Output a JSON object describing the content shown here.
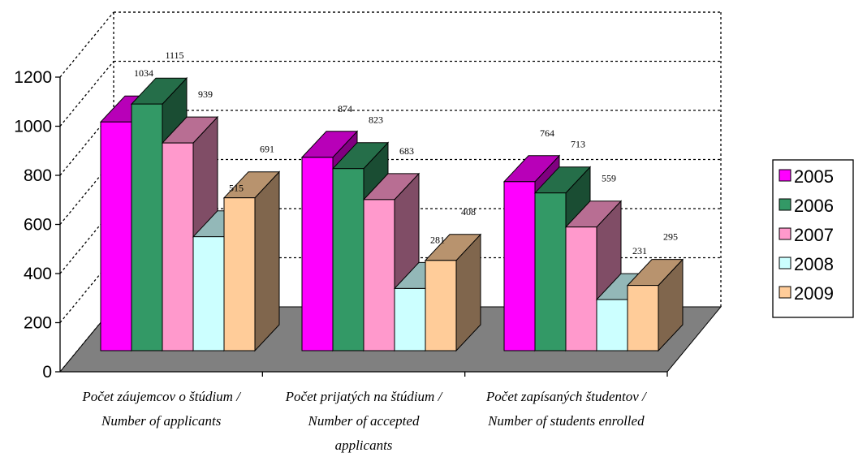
{
  "chart_data": {
    "type": "bar",
    "categories": [
      [
        "Počet záujemcov o štúdium /",
        "Number of applicants"
      ],
      [
        "Počet prijatých na štúdium /",
        "Number of accepted",
        "applicants"
      ],
      [
        "Počet zapísaných študentov /",
        "Number of students enrolled"
      ]
    ],
    "series": [
      {
        "name": "2005",
        "values": [
          1034,
          874,
          764
        ],
        "color": "#FF00FF"
      },
      {
        "name": "2006",
        "values": [
          1115,
          823,
          713
        ],
        "color": "#339966"
      },
      {
        "name": "2007",
        "values": [
          939,
          683,
          559
        ],
        "color": "#FF99CC"
      },
      {
        "name": "2008",
        "values": [
          515,
          281,
          231
        ],
        "color": "#CCFFFF"
      },
      {
        "name": "2009",
        "values": [
          691,
          408,
          295
        ],
        "color": "#FFCC99"
      }
    ],
    "y_ticks": [
      "0",
      "200",
      "400",
      "600",
      "800",
      "1000",
      "1200"
    ],
    "ylim": [
      0,
      1200
    ],
    "grid": true,
    "legend": "right",
    "style": "3d-clustered-column",
    "floor_color": "#808080"
  }
}
